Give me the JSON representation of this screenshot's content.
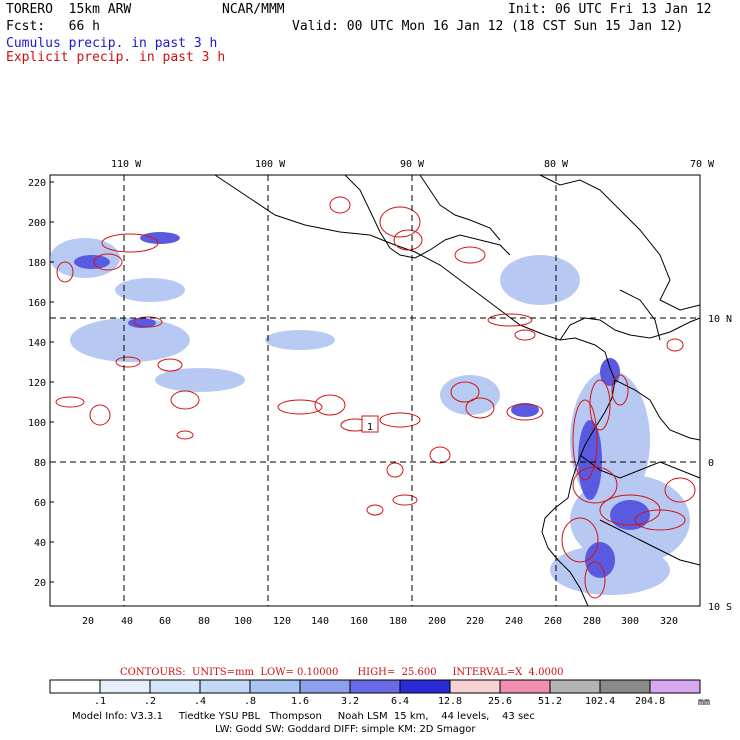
{
  "header": {
    "model": "TORERO  15km ARW",
    "center": "NCAR/MMM",
    "init": "Init: 06 UTC Fri 13 Jan 12",
    "fcst": "Fcst:   66 h",
    "valid": "Valid: 00 UTC Mon 16 Jan 12 (18 CST Sun 15 Jan 12)",
    "legend_cumulus": "Cumulus precip. in past 3 h",
    "legend_explicit": "Explicit precip. in past 3 h"
  },
  "top_labels": [
    "110 W",
    "100 W",
    "90 W",
    "80 W",
    "70 W"
  ],
  "right_labels": [
    "10 N",
    "0",
    "10 S"
  ],
  "x_ticks": [
    "20",
    "40",
    "60",
    "80",
    "100",
    "120",
    "140",
    "160",
    "180",
    "200",
    "220",
    "240",
    "260",
    "280",
    "300",
    "320"
  ],
  "y_ticks": [
    "220",
    "200",
    "180",
    "160",
    "140",
    "120",
    "100",
    "80",
    "60",
    "40",
    "20"
  ],
  "station_marker": "1",
  "contours_text": "CONTOURS:  UNITS=mm  LOW= 0.10000      HIGH=  25.600     INTERVAL=X  4.0000",
  "colorbar": {
    "labels": [
      ".1",
      ".2",
      ".4",
      ".8",
      "1.6",
      "3.2",
      "6.4",
      "12.8",
      "25.6",
      "51.2",
      "102.4",
      "204.8"
    ],
    "unit": "mm",
    "colors": [
      "#ffffff",
      "#e6eefc",
      "#d6e6fa",
      "#c2d8f6",
      "#a8c4f2",
      "#8ea0ee",
      "#6a6ae6",
      "#2a2ad6",
      "#f6d2d2",
      "#f090b0",
      "#b4b4b4",
      "#8a8a8a",
      "#d8a8f0"
    ]
  },
  "footer": {
    "line1": "Model Info: V3.3.1     Tiedtke YSU PBL   Thompson     Noah LSM  15 km,    44 levels,    43 sec",
    "line2": "LW: Godd SW: Goddard DIFF: simple KM: 2D Smagor"
  }
}
